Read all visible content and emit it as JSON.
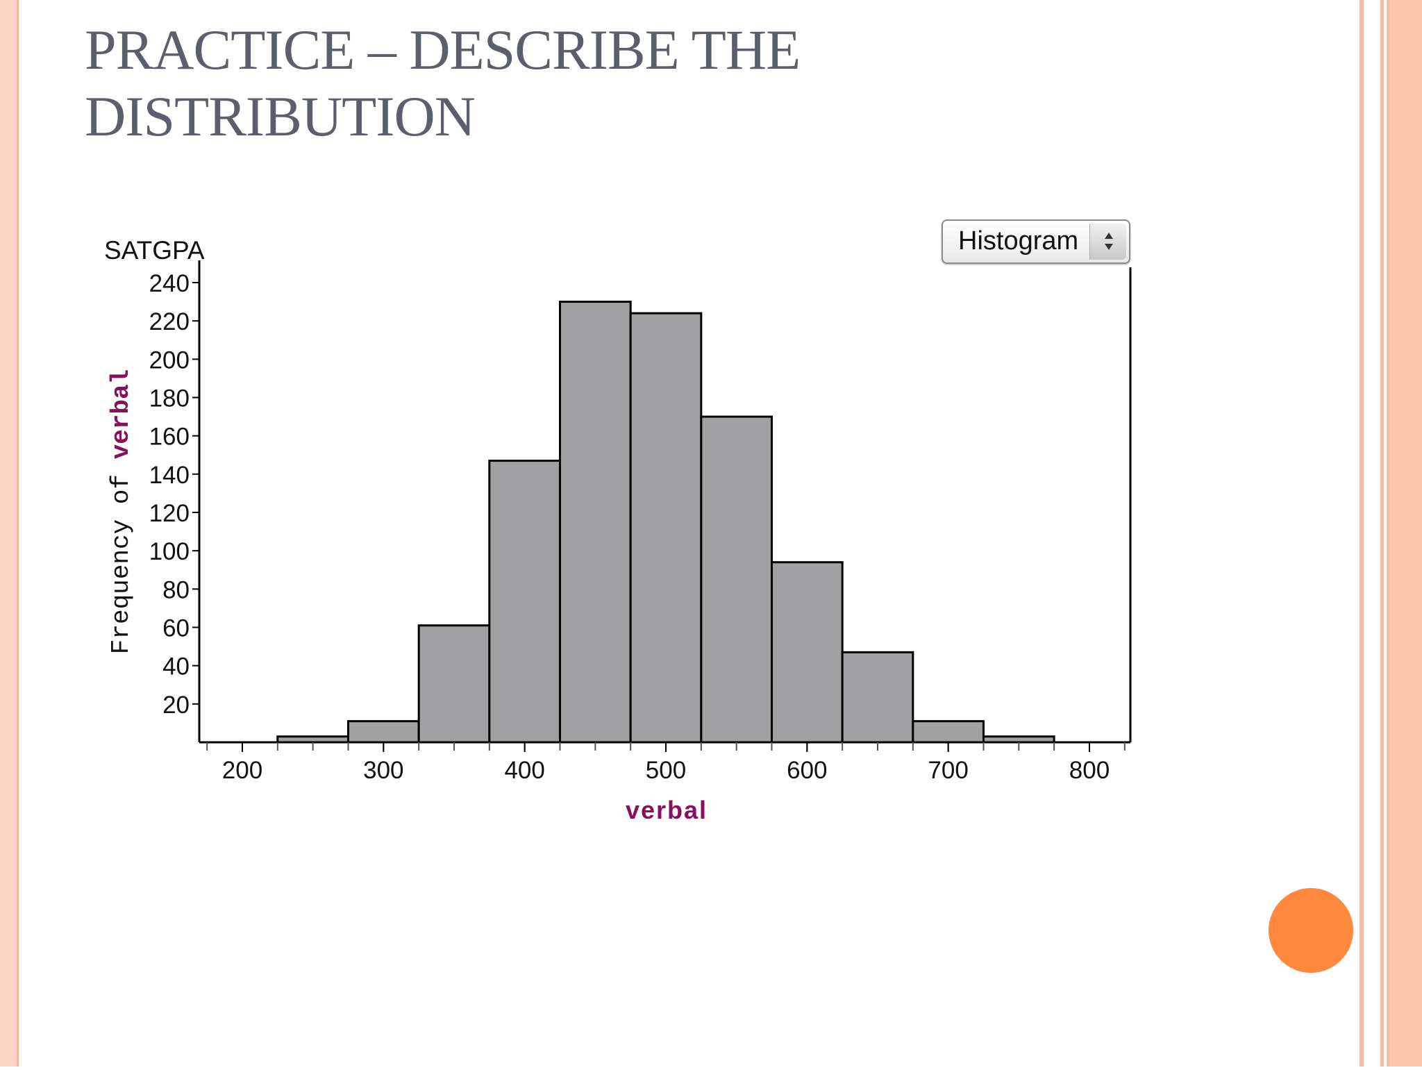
{
  "slide": {
    "title_line1": "PRACTICE – DESCRIBE THE",
    "title_line2": "DISTRIBUTION"
  },
  "colors": {
    "title": "#5b5f6b",
    "bar_fill": "#a1a1a3",
    "axis_label": "#8a0f5b",
    "accent_dot": "#fe883c",
    "border_pink": "#fcd5c5"
  },
  "controls": {
    "plot_type": "Histogram"
  },
  "chart_data": {
    "type": "bar",
    "title": "SATGPA",
    "xlabel": "verbal",
    "ylabel_prefix": "Frequency of ",
    "ylabel_var": "verbal",
    "bin_edges": [
      225,
      275,
      325,
      375,
      425,
      475,
      525,
      575,
      625,
      675,
      725,
      775
    ],
    "values": [
      3,
      11,
      61,
      147,
      230,
      224,
      170,
      94,
      47,
      11,
      3
    ],
    "xlim": [
      170,
      830
    ],
    "ylim": [
      0,
      245
    ],
    "x_ticks": [
      200,
      300,
      400,
      500,
      600,
      700,
      800
    ],
    "y_ticks": [
      20,
      40,
      60,
      80,
      100,
      120,
      140,
      160,
      180,
      200,
      220,
      240
    ],
    "grid": false
  }
}
